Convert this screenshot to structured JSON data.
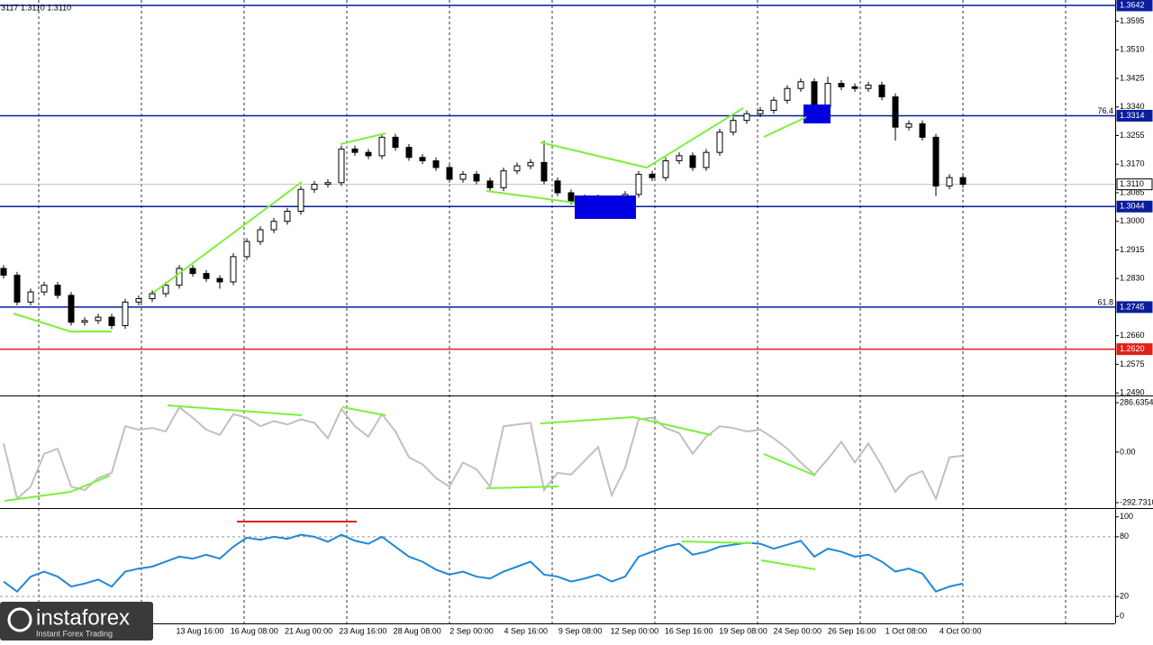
{
  "chart_data": [
    {
      "type": "candlestick",
      "title": "3117 1.3110 1.3110",
      "open": [
        1.286,
        1.284,
        1.276,
        1.279,
        1.281,
        1.278,
        1.27,
        1.2705,
        1.2715,
        1.269,
        1.276,
        1.277,
        1.2785,
        1.281,
        1.286,
        1.2845,
        1.283,
        1.282,
        1.2895,
        1.294,
        1.2975,
        1.3,
        1.303,
        1.3095,
        1.311,
        1.3115,
        1.3215,
        1.3205,
        1.3195,
        1.325,
        1.322,
        1.319,
        1.318,
        1.316,
        1.3125,
        1.314,
        1.312,
        1.31,
        1.315,
        1.3165,
        1.3175,
        1.312,
        1.3085,
        1.306,
        1.307,
        1.3065,
        1.3035,
        1.308,
        1.314,
        1.313,
        1.318,
        1.3195,
        1.316,
        1.3205,
        1.3265,
        1.33,
        1.332,
        1.333,
        1.336,
        1.3395,
        1.3415,
        1.334,
        1.341,
        1.34,
        1.3395,
        1.3405,
        1.337,
        1.328,
        1.329,
        1.325,
        1.3105,
        1.313
      ],
      "high": [
        1.287,
        1.285,
        1.28,
        1.282,
        1.282,
        1.279,
        1.2715,
        1.2725,
        1.2725,
        1.277,
        1.278,
        1.2795,
        1.282,
        1.287,
        1.287,
        1.2855,
        1.284,
        1.2905,
        1.295,
        1.2985,
        1.301,
        1.304,
        1.3105,
        1.312,
        1.3125,
        1.3225,
        1.3225,
        1.3215,
        1.326,
        1.326,
        1.323,
        1.32,
        1.319,
        1.317,
        1.315,
        1.315,
        1.313,
        1.316,
        1.3175,
        1.3185,
        1.324,
        1.313,
        1.3095,
        1.308,
        1.308,
        1.3075,
        1.309,
        1.315,
        1.315,
        1.319,
        1.3205,
        1.3205,
        1.3215,
        1.3275,
        1.331,
        1.333,
        1.334,
        1.337,
        1.3405,
        1.3425,
        1.3425,
        1.343,
        1.342,
        1.341,
        1.3415,
        1.3415,
        1.338,
        1.33,
        1.33,
        1.326,
        1.314,
        1.314
      ],
      "low": [
        1.283,
        1.275,
        1.275,
        1.278,
        1.277,
        1.269,
        1.269,
        1.2695,
        1.268,
        1.268,
        1.275,
        1.276,
        1.2775,
        1.28,
        1.2835,
        1.282,
        1.28,
        1.281,
        1.2885,
        1.293,
        1.2965,
        1.299,
        1.302,
        1.3085,
        1.31,
        1.3105,
        1.3195,
        1.3185,
        1.3185,
        1.321,
        1.318,
        1.317,
        1.315,
        1.3115,
        1.3115,
        1.311,
        1.309,
        1.309,
        1.314,
        1.3155,
        1.311,
        1.3075,
        1.305,
        1.305,
        1.3055,
        1.301,
        1.3025,
        1.307,
        1.312,
        1.312,
        1.317,
        1.315,
        1.315,
        1.3195,
        1.3255,
        1.329,
        1.331,
        1.332,
        1.335,
        1.3385,
        1.333,
        1.333,
        1.339,
        1.3385,
        1.3385,
        1.336,
        1.324,
        1.327,
        1.324,
        1.3075,
        1.3095,
        1.31
      ],
      "close": [
        1.284,
        1.276,
        1.279,
        1.281,
        1.278,
        1.27,
        1.2705,
        1.2715,
        1.269,
        1.276,
        1.277,
        1.2785,
        1.281,
        1.286,
        1.2845,
        1.283,
        1.282,
        1.2895,
        1.294,
        1.2975,
        1.3,
        1.303,
        1.3095,
        1.311,
        1.3115,
        1.3215,
        1.3205,
        1.3195,
        1.325,
        1.322,
        1.319,
        1.318,
        1.316,
        1.3125,
        1.314,
        1.312,
        1.31,
        1.315,
        1.3165,
        1.3175,
        1.312,
        1.3085,
        1.306,
        1.307,
        1.3065,
        1.3035,
        1.308,
        1.314,
        1.313,
        1.318,
        1.3195,
        1.316,
        1.3205,
        1.3265,
        1.33,
        1.332,
        1.333,
        1.336,
        1.3395,
        1.3415,
        1.334,
        1.341,
        1.34,
        1.3395,
        1.3405,
        1.337,
        1.328,
        1.329,
        1.325,
        1.3105,
        1.313,
        1.311
      ],
      "ylim": [
        1.2485,
        1.3658
      ],
      "yticks": [
        {
          "value": 1.3595,
          "label": "1.3595"
        },
        {
          "value": 1.351,
          "label": "1.3510"
        },
        {
          "value": 1.3425,
          "label": "1.3425"
        },
        {
          "value": 1.334,
          "label": "1.3340"
        },
        {
          "value": 1.3255,
          "label": "1.3255"
        },
        {
          "value": 1.317,
          "label": "1.3170"
        },
        {
          "value": 1.3085,
          "label": "1.3085"
        },
        {
          "value": 1.3,
          "label": "1.3000"
        },
        {
          "value": 1.2915,
          "label": "1.2915"
        },
        {
          "value": 1.283,
          "label": "1.2830"
        },
        {
          "value": 1.266,
          "label": "1.2660"
        },
        {
          "value": 1.2575,
          "label": "1.2575"
        },
        {
          "value": 1.249,
          "label": "1.2490"
        }
      ],
      "levels": [
        {
          "value": 1.3642,
          "label": "1.3642",
          "color": "#0a1e9c"
        },
        {
          "value": 1.3314,
          "label": "1.3314",
          "name": "76.4",
          "color": "#0a1e9c"
        },
        {
          "value": 1.311,
          "label": "1.3110",
          "color": "#c0c0c0"
        },
        {
          "value": 1.3044,
          "label": "1.3044",
          "color": "#0a1e9c"
        },
        {
          "value": 1.2745,
          "label": "1.2745",
          "name": "61.8",
          "color": "#0a1e9c"
        },
        {
          "value": 1.262,
          "label": "1.2620",
          "color": "#e0201a"
        }
      ],
      "xlabels": [
        "13 Aug 16:00",
        "16 Aug 08:00",
        "21 Aug 00:00",
        "23 Aug 16:00",
        "28 Aug 08:00",
        "2 Sep 00:00",
        "4 Sep 16:00",
        "9 Sep 08:00",
        "12 Sep 00:00",
        "16 Sep 16:00",
        "19 Sep 08:00",
        "24 Sep 00:00",
        "26 Sep 16:00",
        "1 Oct 08:00",
        "4 Oct 00:00"
      ]
    },
    {
      "type": "line",
      "color": "#c0c0c0",
      "values": [
        50,
        -270,
        -200,
        -10,
        20,
        -200,
        -220,
        -150,
        -120,
        150,
        130,
        140,
        120,
        260,
        200,
        130,
        100,
        220,
        200,
        150,
        180,
        160,
        190,
        170,
        80,
        250,
        150,
        90,
        220,
        120,
        -30,
        -70,
        -150,
        -200,
        -60,
        -100,
        -200,
        150,
        160,
        170,
        -220,
        -120,
        -130,
        -50,
        30,
        -250,
        -90,
        190,
        200,
        140,
        110,
        -10,
        90,
        150,
        140,
        120,
        130,
        80,
        20,
        -60,
        -130,
        -40,
        60,
        -60,
        50,
        -80,
        -230,
        -140,
        -110,
        -270,
        -30,
        -20
      ],
      "ylim": [
        -319,
        318
      ],
      "yticks": [
        {
          "value": 286.6354,
          "label": "286.6354"
        },
        {
          "value": 0,
          "label": "0.00"
        },
        {
          "value": -292.731,
          "label": "-292.7310"
        }
      ]
    },
    {
      "type": "line",
      "color": "#1f88d8",
      "values": [
        35,
        25,
        40,
        45,
        40,
        30,
        33,
        37,
        30,
        45,
        48,
        50,
        55,
        60,
        58,
        62,
        58,
        70,
        79,
        77,
        80,
        78,
        82,
        80,
        75,
        82,
        76,
        73,
        80,
        70,
        60,
        55,
        47,
        42,
        45,
        40,
        38,
        45,
        50,
        55,
        42,
        40,
        35,
        38,
        42,
        35,
        40,
        60,
        65,
        70,
        73,
        62,
        65,
        70,
        72,
        74,
        73,
        68,
        72,
        76,
        60,
        68,
        65,
        60,
        62,
        55,
        45,
        48,
        43,
        25,
        30,
        33
      ],
      "ylim": [
        -7,
        107
      ],
      "yticks": [
        100,
        80,
        20,
        0
      ]
    }
  ],
  "logo": {
    "name": "instaforex",
    "tagline": "Instant Forex Trading"
  }
}
